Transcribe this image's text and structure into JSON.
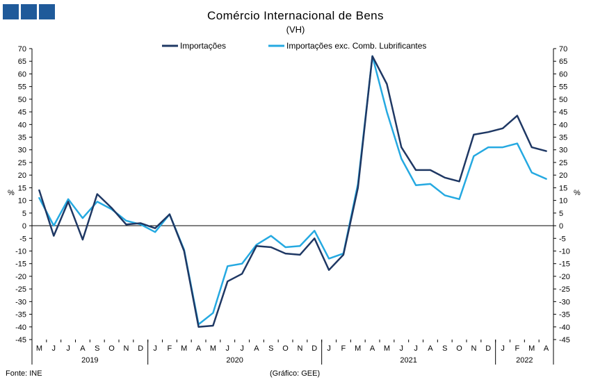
{
  "chart_data": {
    "type": "line",
    "title": "Comércio Internacional de Bens",
    "subtitle": "(VH)",
    "ylabel_left": "%",
    "ylabel_right": "%",
    "ylim": [
      -45,
      70
    ],
    "yticks": [
      70,
      65,
      60,
      55,
      50,
      45,
      40,
      35,
      30,
      25,
      20,
      15,
      10,
      5,
      0,
      -5,
      -10,
      -15,
      -20,
      -25,
      -30,
      -35,
      -40,
      -45
    ],
    "legend_position": "top",
    "grid": false,
    "categories": [
      "M",
      "J",
      "J",
      "A",
      "S",
      "O",
      "N",
      "D",
      "J",
      "F",
      "M",
      "A",
      "M",
      "J",
      "J",
      "A",
      "S",
      "O",
      "N",
      "D",
      "J",
      "F",
      "M",
      "A",
      "M",
      "J",
      "J",
      "A",
      "S",
      "O",
      "N",
      "D",
      "J",
      "F",
      "M",
      "A"
    ],
    "years": [
      {
        "label": "2019",
        "start": 0,
        "end": 7
      },
      {
        "label": "2020",
        "start": 8,
        "end": 19
      },
      {
        "label": "2021",
        "start": 20,
        "end": 31
      },
      {
        "label": "2022",
        "start": 32,
        "end": 35
      }
    ],
    "series": [
      {
        "name": "Importações",
        "color": "#1f3864",
        "values": [
          14,
          -4,
          9.5,
          -5.5,
          12.5,
          7,
          0.5,
          1,
          -1,
          4.5,
          -10,
          -40,
          -39.5,
          -22,
          -19,
          -8,
          -8.5,
          -11,
          -11.5,
          -5,
          -17.5,
          -11.5,
          15,
          67,
          56,
          31,
          22,
          22,
          19,
          17.5,
          36,
          37,
          38.5,
          43.5,
          31,
          29.5
        ]
      },
      {
        "name": "Importações exc. Comb. Lubrificantes",
        "color": "#25a9e1",
        "values": [
          11,
          0,
          10.5,
          3,
          9.5,
          6.5,
          2,
          0.5,
          -2.5,
          4.5,
          -9.5,
          -39,
          -34.5,
          -16,
          -15,
          -7.5,
          -4,
          -8.5,
          -8,
          -2,
          -13,
          -11,
          16.5,
          67,
          45,
          26.5,
          16,
          16.5,
          12,
          10.5,
          27.5,
          31,
          31,
          32.5,
          21,
          18.5
        ]
      }
    ]
  },
  "footer": {
    "source": "Fonte: INE",
    "credit": "(Gráfico: GEE)"
  },
  "logo": {
    "color": "#1f5a9a"
  }
}
